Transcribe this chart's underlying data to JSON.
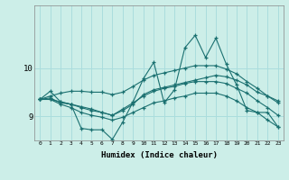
{
  "xlabel": "Humidex (Indice chaleur)",
  "ylabel": "",
  "bg_color": "#cceee8",
  "line_color": "#1a7070",
  "grid_color": "#aadddd",
  "xlim": [
    -0.5,
    23.5
  ],
  "ylim": [
    8.5,
    11.3
  ],
  "yticks": [
    9,
    10
  ],
  "xticks": [
    0,
    1,
    2,
    3,
    4,
    5,
    6,
    7,
    8,
    9,
    10,
    11,
    12,
    13,
    14,
    15,
    16,
    17,
    18,
    19,
    20,
    21,
    22,
    23
  ],
  "series": [
    [
      9.35,
      9.52,
      9.3,
      9.25,
      8.75,
      8.72,
      8.72,
      8.52,
      8.88,
      9.3,
      9.78,
      10.12,
      9.28,
      9.55,
      10.42,
      10.68,
      10.22,
      10.62,
      10.08,
      9.65,
      9.12,
      9.08,
      9.08,
      8.78
    ],
    [
      9.35,
      9.38,
      9.28,
      9.25,
      9.2,
      9.15,
      9.08,
      9.02,
      9.12,
      9.25,
      9.45,
      9.55,
      9.6,
      9.65,
      9.7,
      9.75,
      9.8,
      9.85,
      9.82,
      9.75,
      9.65,
      9.5,
      9.42,
      9.32
    ],
    [
      9.35,
      9.42,
      9.48,
      9.52,
      9.52,
      9.5,
      9.5,
      9.45,
      9.5,
      9.62,
      9.75,
      9.85,
      9.9,
      9.95,
      10.0,
      10.05,
      10.05,
      10.05,
      9.98,
      9.88,
      9.72,
      9.58,
      9.42,
      9.28
    ],
    [
      9.35,
      9.35,
      9.3,
      9.25,
      9.18,
      9.12,
      9.08,
      9.02,
      9.15,
      9.28,
      9.42,
      9.52,
      9.58,
      9.62,
      9.68,
      9.72,
      9.72,
      9.72,
      9.68,
      9.58,
      9.48,
      9.32,
      9.18,
      9.02
    ],
    [
      9.35,
      9.35,
      9.25,
      9.18,
      9.08,
      9.02,
      8.98,
      8.92,
      8.98,
      9.08,
      9.18,
      9.28,
      9.32,
      9.38,
      9.42,
      9.48,
      9.48,
      9.48,
      9.42,
      9.32,
      9.18,
      9.08,
      8.92,
      8.78
    ]
  ]
}
